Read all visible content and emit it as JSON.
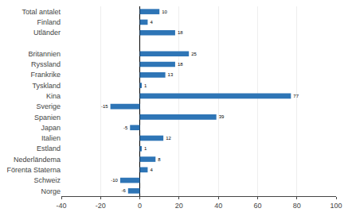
{
  "chart_data": {
    "type": "bar",
    "orientation": "horizontal",
    "categories": [
      "Total antalet",
      "Finland",
      "Utländer",
      null,
      "Britannien",
      "Ryssland",
      "Frankrike",
      "Tyskland",
      "Kina",
      "Sverige",
      "Spanien",
      "Japan",
      "Italien",
      "Estland",
      "Nederländema",
      "Förenta Staterna",
      "Schweiz",
      "Norge"
    ],
    "values": [
      10,
      4,
      18,
      null,
      25,
      18,
      13,
      1,
      77,
      -15,
      39,
      -5,
      12,
      1,
      8,
      4,
      -10,
      -6
    ],
    "color": "#2e75b6",
    "xlim": [
      -40,
      100
    ],
    "xticks": [
      -40,
      -20,
      0,
      20,
      40,
      60,
      80,
      100
    ],
    "grid": true,
    "data_labels": true
  }
}
